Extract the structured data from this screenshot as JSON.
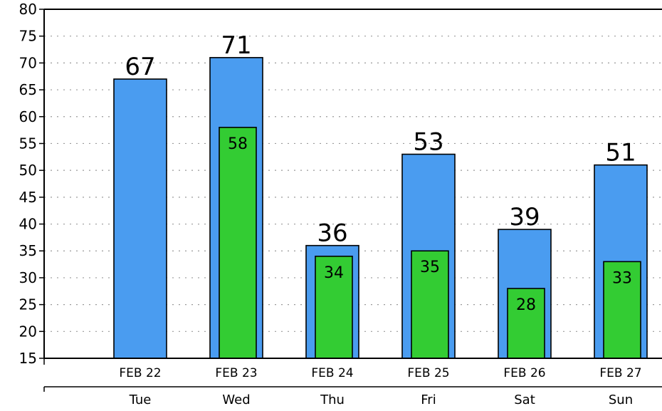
{
  "chart_data": {
    "type": "bar",
    "categories": [
      "FEB 22",
      "FEB 23",
      "FEB 24",
      "FEB 25",
      "FEB 26",
      "FEB 27"
    ],
    "days": [
      "Tue",
      "Wed",
      "Thu",
      "Fri",
      "Sat",
      "Sun"
    ],
    "series": [
      {
        "values": [
          67,
          71,
          36,
          53,
          39,
          51
        ],
        "labels": [
          "67",
          "71",
          "36",
          "53",
          "39",
          "51"
        ]
      },
      {
        "values": [
          null,
          58,
          34,
          35,
          28,
          33
        ],
        "labels": [
          "",
          "58",
          "34",
          "35",
          "28",
          "33"
        ]
      }
    ],
    "ylim": [
      15,
      80
    ],
    "yticks": [
      15,
      20,
      25,
      30,
      35,
      40,
      45,
      50,
      55,
      60,
      65,
      70,
      75,
      80
    ],
    "grid": true,
    "colors": {
      "high": "#4a9cf0",
      "low": "#33cc33",
      "outline": "#000000",
      "grid": "#999999"
    }
  }
}
